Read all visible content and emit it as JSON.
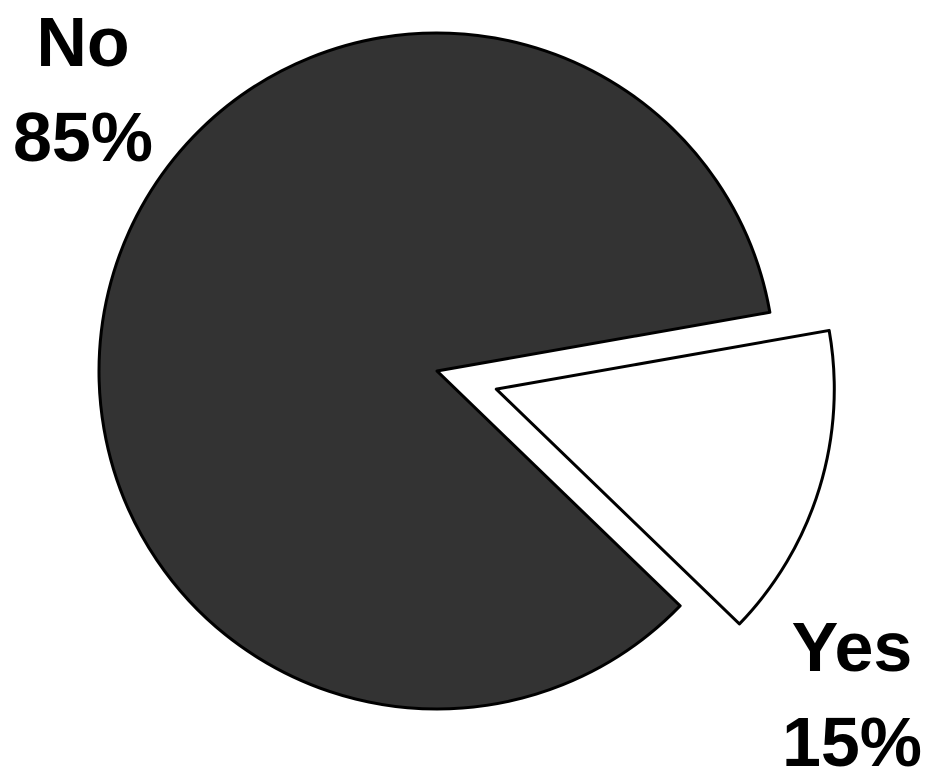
{
  "chart_data": {
    "type": "pie",
    "title": "",
    "exploded": "Yes",
    "slices": [
      {
        "label": "No",
        "value": 85,
        "value_text": "85%",
        "color": "#333333"
      },
      {
        "label": "Yes",
        "value": 15,
        "value_text": "15%",
        "color": "#ffffff"
      }
    ],
    "outline_color": "#000000"
  }
}
